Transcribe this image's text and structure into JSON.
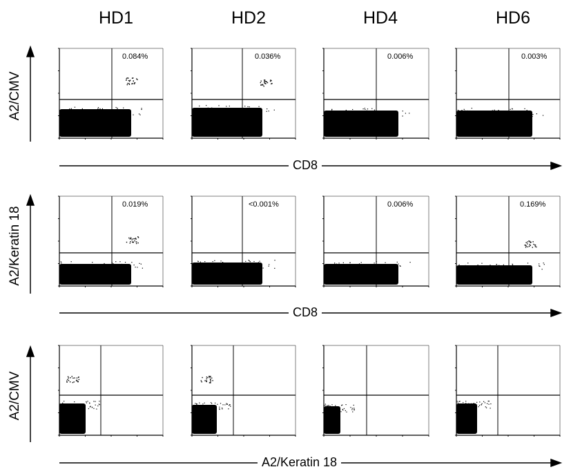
{
  "figure": {
    "column_headers": [
      "HD1",
      "HD2",
      "HD4",
      "HD6"
    ],
    "rows": [
      {
        "y_label": "A2/CMV",
        "x_label": "CD8",
        "percentages": [
          "0.084%",
          "0.036%",
          "0.006%",
          "0.003%"
        ]
      },
      {
        "y_label": "A2/Keratin 18",
        "x_label": "CD8",
        "percentages": [
          "0.019%",
          "<0.001%",
          "0.006%",
          "0.169%"
        ]
      },
      {
        "y_label": "A2/CMV",
        "x_label": "A2/Keratin 18",
        "percentages": [
          "",
          "",
          "",
          ""
        ]
      }
    ]
  },
  "colors": {
    "ink": "#000000",
    "paper": "#ffffff"
  }
}
